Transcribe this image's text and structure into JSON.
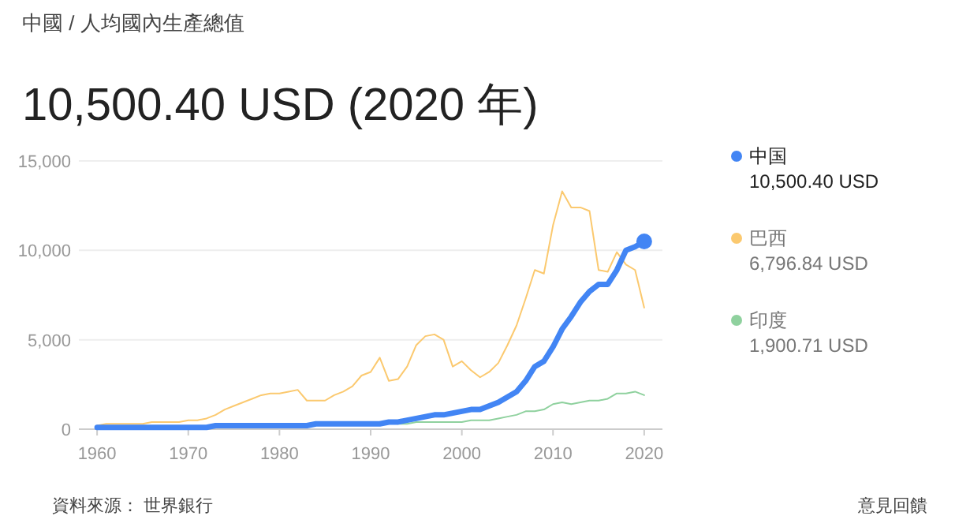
{
  "chart_data": {
    "type": "line",
    "subtitle": "中國 / 人均國內生產總值",
    "title": "10,500.40 USD (2020 年)",
    "x": [
      1960,
      1961,
      1962,
      1963,
      1964,
      1965,
      1966,
      1967,
      1968,
      1969,
      1970,
      1971,
      1972,
      1973,
      1974,
      1975,
      1976,
      1977,
      1978,
      1979,
      1980,
      1981,
      1982,
      1983,
      1984,
      1985,
      1986,
      1987,
      1988,
      1989,
      1990,
      1991,
      1992,
      1993,
      1994,
      1995,
      1996,
      1997,
      1998,
      1999,
      2000,
      2001,
      2002,
      2003,
      2004,
      2005,
      2006,
      2007,
      2008,
      2009,
      2010,
      2011,
      2012,
      2013,
      2014,
      2015,
      2016,
      2017,
      2018,
      2019,
      2020
    ],
    "series": [
      {
        "name": "中国",
        "color": "#4285f4",
        "values": [
          100,
          100,
          100,
          100,
          100,
          100,
          100,
          100,
          100,
          100,
          100,
          100,
          100,
          200,
          200,
          200,
          200,
          200,
          200,
          200,
          200,
          200,
          200,
          200,
          300,
          300,
          300,
          300,
          300,
          300,
          300,
          300,
          400,
          400,
          500,
          600,
          700,
          800,
          800,
          900,
          1000,
          1100,
          1100,
          1300,
          1500,
          1800,
          2100,
          2700,
          3500,
          3800,
          4600,
          5600,
          6300,
          7100,
          7700,
          8100,
          8100,
          8900,
          10000,
          10200,
          10500.4
        ]
      },
      {
        "name": "巴西",
        "color": "#fbc96f",
        "values": [
          200,
          300,
          300,
          300,
          300,
          300,
          400,
          400,
          400,
          400,
          500,
          500,
          600,
          800,
          1100,
          1300,
          1500,
          1700,
          1900,
          2000,
          2000,
          2100,
          2200,
          1600,
          1600,
          1600,
          1900,
          2100,
          2400,
          3000,
          3200,
          4000,
          2700,
          2800,
          3500,
          4700,
          5200,
          5300,
          5000,
          3500,
          3800,
          3300,
          2900,
          3200,
          3700,
          4700,
          5800,
          7300,
          8900,
          8700,
          11400,
          13300,
          12400,
          12400,
          12200,
          8900,
          8800,
          9900,
          9200,
          8900,
          6796.84
        ]
      },
      {
        "name": "印度",
        "color": "#8fd19e",
        "values": [
          null,
          null,
          null,
          null,
          null,
          null,
          null,
          null,
          null,
          null,
          null,
          null,
          null,
          null,
          null,
          null,
          null,
          null,
          null,
          null,
          null,
          null,
          null,
          null,
          null,
          null,
          null,
          null,
          null,
          null,
          null,
          null,
          null,
          300,
          300,
          400,
          400,
          400,
          400,
          400,
          400,
          500,
          500,
          500,
          600,
          700,
          800,
          1000,
          1000,
          1100,
          1400,
          1500,
          1400,
          1500,
          1600,
          1600,
          1700,
          2000,
          2000,
          2100,
          1900.71
        ]
      }
    ],
    "xlim": [
      1958,
      2022
    ],
    "xticks": [
      1960,
      1970,
      1980,
      1990,
      2000,
      2010,
      2020
    ],
    "ylim": [
      0,
      15000
    ],
    "yticks": [
      0,
      {
        "value": 5000,
        "label": "5,000"
      },
      {
        "value": 10000,
        "label": "10,000"
      },
      {
        "value": 15000,
        "label": "15,000"
      }
    ],
    "grid": "y",
    "legend": "right",
    "annotations": [
      "10,500.40 USD",
      "6,796.84 USD",
      "1,900.71 USD",
      "資料來源： 世界銀行",
      "意見回饋"
    ]
  }
}
